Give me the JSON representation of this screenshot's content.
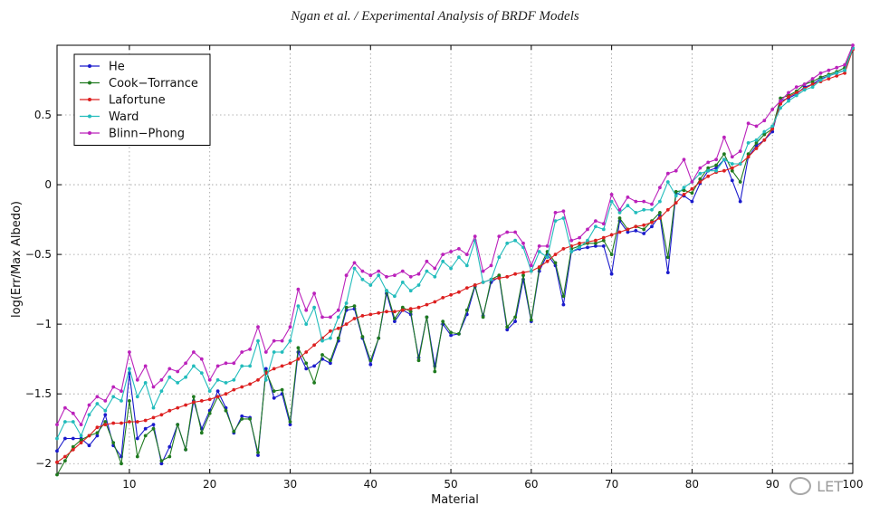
{
  "header": {
    "title": "Ngan et al. / Experimental Analysis of BRDF Models"
  },
  "watermark": {
    "text": "LET"
  },
  "chart_data": {
    "type": "line",
    "title": "",
    "xlabel": "Material",
    "ylabel": "log(Err/Max Albedo)",
    "xlim": [
      1,
      100
    ],
    "ylim": [
      -2.07,
      1.0
    ],
    "xticks": [
      10,
      20,
      30,
      40,
      50,
      60,
      70,
      80,
      90,
      100
    ],
    "yticks": [
      -2,
      -1.5,
      -1,
      -0.5,
      0,
      0.5
    ],
    "xtick_labels": [
      "10",
      "20",
      "30",
      "40",
      "50",
      "60",
      "70",
      "80",
      "90",
      "100"
    ],
    "ytick_labels": [
      "-2",
      "-1.5",
      "-1",
      "-0.5",
      "0",
      "0.5"
    ],
    "grid": true,
    "legend_position": "top-left",
    "x": [
      1,
      2,
      3,
      4,
      5,
      6,
      7,
      8,
      9,
      10,
      11,
      12,
      13,
      14,
      15,
      16,
      17,
      18,
      19,
      20,
      21,
      22,
      23,
      24,
      25,
      26,
      27,
      28,
      29,
      30,
      31,
      32,
      33,
      34,
      35,
      36,
      37,
      38,
      39,
      40,
      41,
      42,
      43,
      44,
      45,
      46,
      47,
      48,
      49,
      50,
      51,
      52,
      53,
      54,
      55,
      56,
      57,
      58,
      59,
      60,
      61,
      62,
      63,
      64,
      65,
      66,
      67,
      68,
      69,
      70,
      71,
      72,
      73,
      74,
      75,
      76,
      77,
      78,
      79,
      80,
      81,
      82,
      83,
      84,
      85,
      86,
      87,
      88,
      89,
      90,
      91,
      92,
      93,
      94,
      95,
      96,
      97,
      98,
      99,
      100
    ],
    "series": [
      {
        "name": "He",
        "color": "#1a1acc",
        "values": [
          -1.91,
          -1.82,
          -1.82,
          -1.82,
          -1.87,
          -1.8,
          -1.65,
          -1.87,
          -1.95,
          -1.35,
          -1.82,
          -1.75,
          -1.72,
          -2.0,
          -1.88,
          -1.72,
          -1.9,
          -1.55,
          -1.75,
          -1.62,
          -1.48,
          -1.6,
          -1.78,
          -1.66,
          -1.67,
          -1.94,
          -1.32,
          -1.53,
          -1.5,
          -1.72,
          -1.2,
          -1.32,
          -1.3,
          -1.25,
          -1.28,
          -1.12,
          -0.9,
          -0.89,
          -1.1,
          -1.29,
          -1.1,
          -0.78,
          -0.98,
          -0.9,
          -0.93,
          -1.24,
          -0.95,
          -1.3,
          -1.0,
          -1.08,
          -1.07,
          -0.93,
          -0.73,
          -0.94,
          -0.7,
          -0.66,
          -1.04,
          -0.98,
          -0.68,
          -0.98,
          -0.62,
          -0.5,
          -0.58,
          -0.86,
          -0.48,
          -0.46,
          -0.45,
          -0.44,
          -0.44,
          -0.64,
          -0.26,
          -0.34,
          -0.33,
          -0.35,
          -0.3,
          -0.22,
          -0.63,
          -0.06,
          -0.08,
          -0.12,
          0.01,
          0.1,
          0.12,
          0.18,
          0.03,
          -0.12,
          0.2,
          0.28,
          0.32,
          0.38,
          0.6,
          0.62,
          0.65,
          0.7,
          0.72,
          0.76,
          0.78,
          0.8,
          0.82,
          0.98
        ]
      },
      {
        "name": "Cook-Torrance",
        "color": "#1f7a1f",
        "values": [
          -2.08,
          -1.98,
          -1.88,
          -1.83,
          -1.8,
          -1.78,
          -1.7,
          -1.85,
          -2.0,
          -1.55,
          -1.95,
          -1.8,
          -1.75,
          -1.98,
          -1.95,
          -1.72,
          -1.9,
          -1.52,
          -1.78,
          -1.64,
          -1.52,
          -1.62,
          -1.77,
          -1.68,
          -1.68,
          -1.92,
          -1.34,
          -1.48,
          -1.47,
          -1.7,
          -1.17,
          -1.28,
          -1.42,
          -1.22,
          -1.26,
          -1.1,
          -0.88,
          -0.87,
          -1.09,
          -1.26,
          -1.1,
          -0.76,
          -0.96,
          -0.88,
          -0.91,
          -1.26,
          -0.95,
          -1.34,
          -0.98,
          -1.06,
          -1.07,
          -0.9,
          -0.72,
          -0.95,
          -0.68,
          -0.65,
          -1.02,
          -0.95,
          -0.65,
          -0.97,
          -0.6,
          -0.48,
          -0.56,
          -0.8,
          -0.46,
          -0.44,
          -0.42,
          -0.42,
          -0.4,
          -0.5,
          -0.24,
          -0.32,
          -0.3,
          -0.32,
          -0.26,
          -0.2,
          -0.52,
          -0.05,
          -0.04,
          -0.06,
          0.04,
          0.12,
          0.14,
          0.22,
          0.1,
          0.02,
          0.22,
          0.3,
          0.36,
          0.4,
          0.62,
          0.64,
          0.67,
          0.72,
          0.74,
          0.77,
          0.79,
          0.81,
          0.84,
          0.98
        ]
      },
      {
        "name": "Lafortune",
        "color": "#dd1f1f",
        "values": [
          -1.99,
          -1.95,
          -1.9,
          -1.85,
          -1.8,
          -1.74,
          -1.72,
          -1.71,
          -1.71,
          -1.7,
          -1.7,
          -1.69,
          -1.67,
          -1.65,
          -1.62,
          -1.6,
          -1.58,
          -1.56,
          -1.55,
          -1.54,
          -1.52,
          -1.5,
          -1.47,
          -1.45,
          -1.43,
          -1.4,
          -1.35,
          -1.32,
          -1.3,
          -1.28,
          -1.25,
          -1.2,
          -1.15,
          -1.1,
          -1.05,
          -1.03,
          -1.0,
          -0.96,
          -0.94,
          -0.93,
          -0.92,
          -0.91,
          -0.91,
          -0.9,
          -0.89,
          -0.88,
          -0.86,
          -0.84,
          -0.81,
          -0.79,
          -0.77,
          -0.74,
          -0.72,
          -0.7,
          -0.68,
          -0.67,
          -0.66,
          -0.64,
          -0.63,
          -0.62,
          -0.59,
          -0.55,
          -0.5,
          -0.46,
          -0.44,
          -0.42,
          -0.41,
          -0.4,
          -0.38,
          -0.36,
          -0.34,
          -0.32,
          -0.3,
          -0.29,
          -0.27,
          -0.24,
          -0.18,
          -0.13,
          -0.07,
          -0.03,
          0.02,
          0.06,
          0.09,
          0.1,
          0.12,
          0.15,
          0.2,
          0.26,
          0.32,
          0.4,
          0.58,
          0.63,
          0.66,
          0.69,
          0.72,
          0.74,
          0.76,
          0.78,
          0.8,
          0.97
        ]
      },
      {
        "name": "Ward",
        "color": "#22bcbc",
        "values": [
          -1.82,
          -1.7,
          -1.7,
          -1.8,
          -1.65,
          -1.57,
          -1.62,
          -1.52,
          -1.55,
          -1.32,
          -1.52,
          -1.42,
          -1.6,
          -1.48,
          -1.38,
          -1.42,
          -1.38,
          -1.3,
          -1.35,
          -1.48,
          -1.4,
          -1.42,
          -1.4,
          -1.3,
          -1.3,
          -1.12,
          -1.4,
          -1.2,
          -1.2,
          -1.12,
          -0.87,
          -1.0,
          -0.88,
          -1.12,
          -1.1,
          -0.95,
          -0.85,
          -0.6,
          -0.68,
          -0.72,
          -0.65,
          -0.76,
          -0.8,
          -0.7,
          -0.76,
          -0.72,
          -0.62,
          -0.66,
          -0.55,
          -0.6,
          -0.52,
          -0.58,
          -0.4,
          -0.7,
          -0.68,
          -0.52,
          -0.42,
          -0.4,
          -0.45,
          -0.62,
          -0.48,
          -0.52,
          -0.26,
          -0.24,
          -0.48,
          -0.45,
          -0.4,
          -0.3,
          -0.32,
          -0.12,
          -0.2,
          -0.15,
          -0.2,
          -0.18,
          -0.18,
          -0.12,
          0.02,
          -0.08,
          -0.02,
          0.02,
          0.08,
          0.1,
          0.1,
          0.18,
          0.15,
          0.15,
          0.3,
          0.32,
          0.38,
          0.42,
          0.55,
          0.6,
          0.64,
          0.68,
          0.7,
          0.75,
          0.78,
          0.8,
          0.82,
          0.98
        ]
      },
      {
        "name": "Blinn-Phong",
        "color": "#bb22bb",
        "values": [
          -1.72,
          -1.6,
          -1.64,
          -1.72,
          -1.58,
          -1.52,
          -1.55,
          -1.45,
          -1.48,
          -1.2,
          -1.4,
          -1.3,
          -1.45,
          -1.4,
          -1.32,
          -1.34,
          -1.28,
          -1.2,
          -1.25,
          -1.4,
          -1.3,
          -1.28,
          -1.28,
          -1.2,
          -1.18,
          -1.02,
          -1.2,
          -1.12,
          -1.12,
          -1.02,
          -0.75,
          -0.9,
          -0.78,
          -0.95,
          -0.95,
          -0.9,
          -0.65,
          -0.56,
          -0.62,
          -0.65,
          -0.62,
          -0.66,
          -0.65,
          -0.62,
          -0.66,
          -0.64,
          -0.55,
          -0.6,
          -0.5,
          -0.48,
          -0.46,
          -0.5,
          -0.37,
          -0.62,
          -0.58,
          -0.37,
          -0.34,
          -0.34,
          -0.42,
          -0.58,
          -0.44,
          -0.44,
          -0.2,
          -0.19,
          -0.4,
          -0.38,
          -0.32,
          -0.26,
          -0.28,
          -0.07,
          -0.18,
          -0.09,
          -0.12,
          -0.12,
          -0.14,
          -0.02,
          0.08,
          0.1,
          0.18,
          0.02,
          0.12,
          0.16,
          0.18,
          0.34,
          0.2,
          0.24,
          0.44,
          0.42,
          0.46,
          0.54,
          0.6,
          0.66,
          0.7,
          0.72,
          0.76,
          0.8,
          0.82,
          0.84,
          0.86,
          1.0
        ]
      }
    ]
  }
}
